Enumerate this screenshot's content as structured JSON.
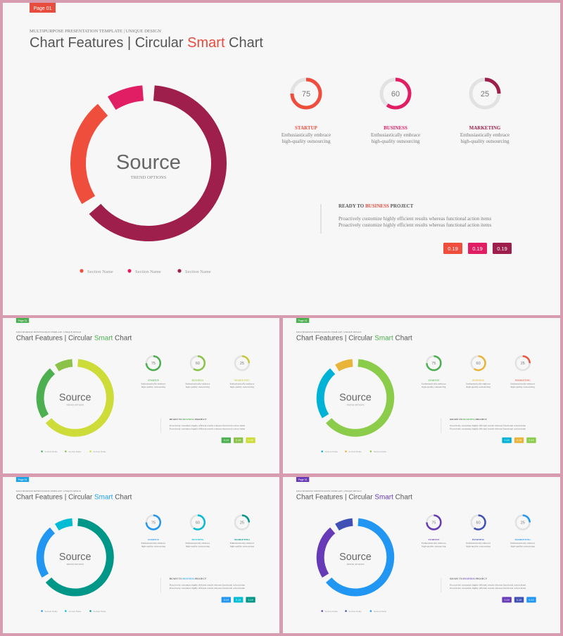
{
  "template": {
    "page_tag": "Page 01",
    "subtitle": "MULTIPURPOSE PRESENTATION TEMPLATE | UNIQUE DESIGN",
    "title_prefix": "Chart Features | Circular ",
    "title_accent": "Smart",
    "title_suffix": " Chart",
    "center_title": "Source",
    "center_sub": "TREND OPTIONS",
    "gauges": [
      {
        "value": 75,
        "label": "STARTUP",
        "desc1": "Enthusiastically embrace",
        "desc2": "high-quality outsourcing"
      },
      {
        "value": 60,
        "label": "BUSINESS",
        "desc1": "Enthusiastically embrace",
        "desc2": "high-quality outsourcing"
      },
      {
        "value": 25,
        "label": "MARKETING",
        "desc1": "Enthusiastically embrace",
        "desc2": "high-quality outsourcing"
      }
    ],
    "ready_prefix": "READY TO ",
    "ready_accent": "BUSINESS",
    "ready_suffix": " PROJECT",
    "ready_line1": "Proactively customize highly efficient results whereas functional action items",
    "ready_line2": "Proactively customize highly efficient results whereas functional action items",
    "badges": [
      "0.19",
      "0.19",
      "0.19"
    ],
    "legend": [
      "Section Name",
      "Section Name",
      "Section Name"
    ]
  },
  "chart_data": {
    "type": "pie",
    "style": "donut",
    "slices": [
      {
        "name": "Section Name",
        "share": 0.25
      },
      {
        "name": "Section Name",
        "share": 0.1
      },
      {
        "name": "Section Name",
        "share": 0.65
      }
    ]
  },
  "slides": [
    {
      "id": "slide-red",
      "colors": [
        "#f04e3d",
        "#e11d63",
        "#9e1f4b"
      ],
      "accent": "#e84c3d",
      "gauge_colors": [
        "#f04e3d",
        "#e11d63",
        "#9e1f4b"
      ],
      "page_tag_color": "#e84c3d"
    },
    {
      "id": "slide-green",
      "colors": [
        "#4caf50",
        "#8bc34a",
        "#cddc39"
      ],
      "accent": "#4caf50",
      "gauge_colors": [
        "#4caf50",
        "#8bc34a",
        "#c7c93a"
      ],
      "page_tag_color": "#4caf50"
    },
    {
      "id": "slide-mixed",
      "colors": [
        "#00b3d6",
        "#e9b43a",
        "#8bcc4a"
      ],
      "accent": "#4caf50",
      "gauge_colors": [
        "#4caf50",
        "#e9b43a",
        "#e9573f"
      ],
      "page_tag_color": "#4caf50"
    },
    {
      "id": "slide-blue",
      "colors": [
        "#2196f3",
        "#00bcd4",
        "#009688"
      ],
      "accent": "#1ea3e6",
      "gauge_colors": [
        "#2196f3",
        "#00bcd4",
        "#009688"
      ],
      "page_tag_color": "#1ea3e6"
    },
    {
      "id": "slide-purple",
      "colors": [
        "#673ab7",
        "#3f51b5",
        "#2196f3"
      ],
      "accent": "#673ab7",
      "gauge_colors": [
        "#673ab7",
        "#3f51b5",
        "#2196f3"
      ],
      "page_tag_color": "#673ab7"
    }
  ]
}
